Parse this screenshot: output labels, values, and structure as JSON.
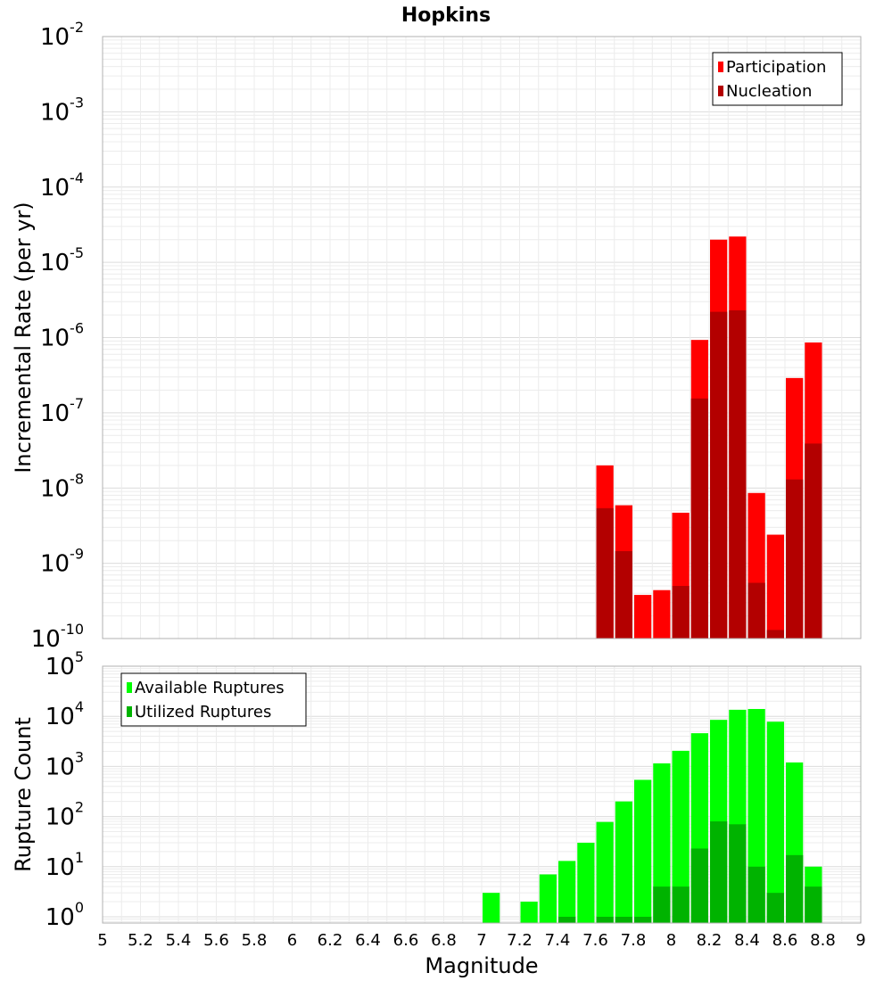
{
  "chart_data": [
    {
      "type": "bar",
      "title": "Hopkins",
      "xlabel": "",
      "ylabel": "Incremental Rate (per yr)",
      "yscale": "log",
      "ylim": [
        1e-10,
        0.01
      ],
      "xlim": [
        5,
        9
      ],
      "grid": true,
      "legend_position": "top-right",
      "bar_width": 0.1,
      "x": [
        7.65,
        7.75,
        7.85,
        7.95,
        8.05,
        8.15,
        8.25,
        8.35,
        8.45,
        8.55,
        8.65,
        8.75
      ],
      "overlay": true,
      "series": [
        {
          "name": "Participation",
          "color": "#ff0000",
          "values": [
            2e-08,
            5.9e-09,
            3.8e-10,
            4.4e-10,
            4.7e-09,
            9.3e-07,
            2e-05,
            2.2e-05,
            8.6e-09,
            2.4e-09,
            2.9e-07,
            8.6e-07
          ]
        },
        {
          "name": "Nucleation",
          "color": "#b30000",
          "values": [
            5.4e-09,
            1.45e-09,
            null,
            null,
            5e-10,
            1.55e-07,
            2.2e-06,
            2.3e-06,
            5.5e-10,
            1.3e-10,
            1.3e-08,
            3.9e-08
          ]
        }
      ],
      "y_ticks": [
        {
          "base": "10",
          "exp": "-2",
          "value": 0.01
        },
        {
          "base": "10",
          "exp": "-3",
          "value": 0.001
        },
        {
          "base": "10",
          "exp": "-4",
          "value": 0.0001
        },
        {
          "base": "10",
          "exp": "-5",
          "value": 1e-05
        },
        {
          "base": "10",
          "exp": "-6",
          "value": 1e-06
        },
        {
          "base": "10",
          "exp": "-7",
          "value": 1e-07
        },
        {
          "base": "10",
          "exp": "-8",
          "value": 1e-08
        },
        {
          "base": "10",
          "exp": "-9",
          "value": 1e-09
        },
        {
          "base": "10",
          "exp": "-10",
          "value": 1e-10
        }
      ]
    },
    {
      "type": "bar",
      "title": "",
      "xlabel": "Magnitude",
      "ylabel": "Rupture Count",
      "yscale": "log",
      "ylim": [
        0.75,
        100000.0
      ],
      "xlim": [
        5,
        9
      ],
      "grid": true,
      "legend_position": "top-left",
      "bar_width": 0.1,
      "x": [
        7.05,
        7.25,
        7.35,
        7.45,
        7.55,
        7.65,
        7.75,
        7.85,
        7.95,
        8.05,
        8.15,
        8.25,
        8.35,
        8.45,
        8.55,
        8.65,
        8.75
      ],
      "overlay": true,
      "series": [
        {
          "name": "Available Ruptures",
          "color": "#00ff00",
          "values": [
            3,
            2,
            7,
            13,
            30,
            78,
            200,
            540,
            1150,
            2050,
            4600,
            8500,
            13500,
            14000,
            7800,
            1200,
            10
          ]
        },
        {
          "name": "Utilized Ruptures",
          "color": "#00b300",
          "values": [
            null,
            null,
            null,
            1,
            null,
            1,
            1,
            1,
            4,
            4,
            23,
            80,
            70,
            10,
            3,
            17,
            4
          ]
        }
      ],
      "y_ticks": [
        {
          "base": "10",
          "exp": "5",
          "value": 100000.0
        },
        {
          "base": "10",
          "exp": "4",
          "value": 10000.0
        },
        {
          "base": "10",
          "exp": "3",
          "value": 1000.0
        },
        {
          "base": "10",
          "exp": "2",
          "value": 100.0
        },
        {
          "base": "10",
          "exp": "1",
          "value": 10.0
        },
        {
          "base": "10",
          "exp": "0",
          "value": 1
        }
      ],
      "x_ticks": [
        "5",
        "5.2",
        "5.4",
        "5.6",
        "5.8",
        "6",
        "6.2",
        "6.4",
        "6.6",
        "6.8",
        "7",
        "7.2",
        "7.4",
        "7.6",
        "7.8",
        "8",
        "8.2",
        "8.4",
        "8.6",
        "8.8",
        "9"
      ]
    }
  ]
}
